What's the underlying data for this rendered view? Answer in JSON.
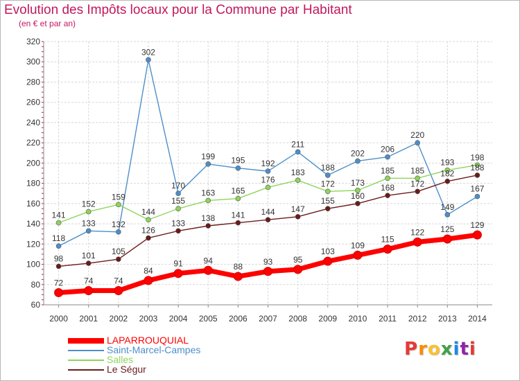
{
  "title": "Evolution des Impôts locaux pour la Commune par Habitant",
  "subtitle": "(en € et par an)",
  "logo": {
    "text": "Proxiti",
    "letter_colors": [
      "#e53935",
      "#fb8c00",
      "#fbc02d",
      "#43a047",
      "#1e88e5",
      "#8e24aa",
      "#e53935"
    ]
  },
  "chart_data": {
    "type": "line",
    "x": [
      2000,
      2001,
      2002,
      2003,
      2004,
      2005,
      2006,
      2007,
      2008,
      2009,
      2010,
      2011,
      2012,
      2013,
      2014
    ],
    "ylim": [
      60,
      320
    ],
    "yticks": [
      60,
      80,
      100,
      120,
      140,
      160,
      180,
      200,
      220,
      240,
      260,
      280,
      300,
      320
    ],
    "grid": true,
    "legend_position": "bottom-left",
    "series": [
      {
        "name": "LAPARROUQUIAL",
        "color": "#ff0000",
        "values": [
          72,
          74,
          74,
          84,
          91,
          94,
          88,
          93,
          95,
          103,
          109,
          115,
          122,
          125,
          129
        ]
      },
      {
        "name": "Saint-Marcel-Campes",
        "color": "#4d8ec9",
        "values": [
          118,
          133,
          132,
          302,
          170,
          199,
          195,
          192,
          211,
          188,
          202,
          206,
          220,
          149,
          167
        ]
      },
      {
        "name": "Salles",
        "color": "#8ed45a",
        "values": [
          141,
          152,
          159,
          144,
          155,
          163,
          165,
          176,
          183,
          172,
          173,
          185,
          185,
          193,
          198
        ]
      },
      {
        "name": "Le Ségur",
        "color": "#6b1a1a",
        "values": [
          98,
          101,
          105,
          126,
          133,
          138,
          141,
          144,
          147,
          155,
          160,
          168,
          172,
          182,
          188
        ]
      }
    ]
  }
}
